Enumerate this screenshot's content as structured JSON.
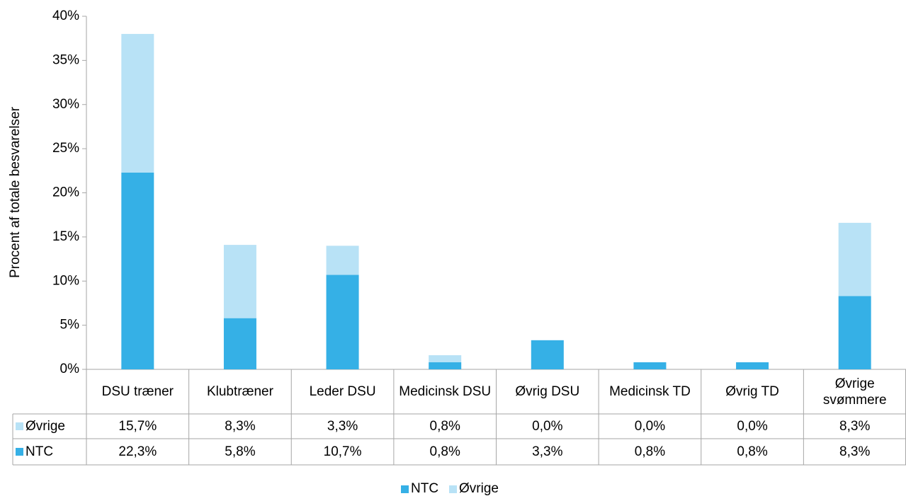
{
  "chart_data": {
    "type": "stacked_bar",
    "y_label": "Procent af totale besvarelser",
    "categories": [
      "DSU træner",
      "Klubtræner",
      "Leder DSU",
      "Medicinsk DSU",
      "Øvrig DSU",
      "Medicinsk TD",
      "Øvrig TD",
      "Øvrige svømmere"
    ],
    "series": [
      {
        "name": "NTC",
        "color": "#35b0e6",
        "values": [
          22.3,
          5.8,
          10.7,
          0.8,
          3.3,
          0.8,
          0.8,
          8.3
        ],
        "value_labels": [
          "22,3%",
          "5,8%",
          "10,7%",
          "0,8%",
          "3,3%",
          "0,8%",
          "0,8%",
          "8,3%"
        ]
      },
      {
        "name": "Øvrige",
        "color": "#b8e2f6",
        "values": [
          15.7,
          8.3,
          3.3,
          0.8,
          0.0,
          0.0,
          0.0,
          8.3
        ],
        "value_labels": [
          "15,7%",
          "8,3%",
          "3,3%",
          "0,8%",
          "0,0%",
          "0,0%",
          "0,0%",
          "8,3%"
        ]
      }
    ],
    "ylim": [
      0,
      40
    ],
    "yticks": [
      {
        "value": 0,
        "label": "0%"
      },
      {
        "value": 5,
        "label": "5%"
      },
      {
        "value": 10,
        "label": "10%"
      },
      {
        "value": 15,
        "label": "15%"
      },
      {
        "value": 20,
        "label": "20%"
      },
      {
        "value": 25,
        "label": "25%"
      },
      {
        "value": 30,
        "label": "30%"
      },
      {
        "value": 35,
        "label": "35%"
      },
      {
        "value": 40,
        "label": "40%"
      }
    ],
    "legend": "bottom"
  }
}
